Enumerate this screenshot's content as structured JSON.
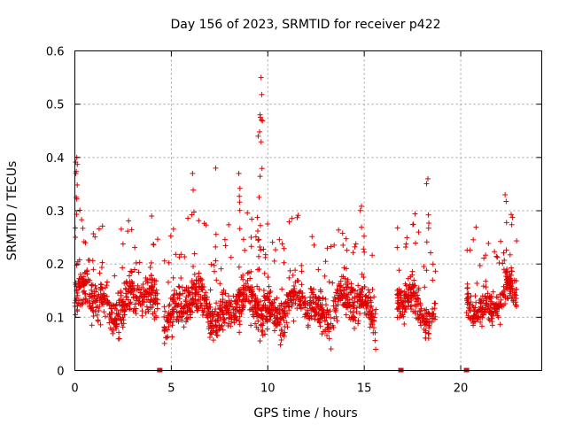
{
  "chart_data": {
    "type": "scatter",
    "title": "Day 156 of 2023, SRMTID for receiver p422",
    "xlabel": "GPS time / hours",
    "ylabel": "SRMTID / TECUs",
    "xlim": [
      0,
      24.2
    ],
    "ylim": [
      0,
      0.6
    ],
    "x_ticks": [
      0,
      5,
      10,
      15,
      20
    ],
    "x_tick_labels": [
      "0",
      "5",
      "10",
      "15",
      "20"
    ],
    "y_ticks": [
      0,
      0.1,
      0.2,
      0.3,
      0.4,
      0.5,
      0.6
    ],
    "y_tick_labels": [
      "0",
      "0.1",
      "0.2",
      "0.3",
      "0.4",
      "0.5",
      "0.6"
    ],
    "grid": true,
    "marker": "+",
    "color": "#e00000",
    "data_gap_markers_hours": [
      4.4,
      16.9,
      20.3
    ],
    "segments": [
      {
        "start": 0.0,
        "end": 4.3,
        "base": 0.13,
        "spread": 0.05,
        "count": 420
      },
      {
        "start": 4.6,
        "end": 15.6,
        "base": 0.12,
        "spread": 0.05,
        "count": 1100
      },
      {
        "start": 16.7,
        "end": 18.7,
        "base": 0.12,
        "spread": 0.04,
        "count": 200
      },
      {
        "start": 20.3,
        "end": 22.9,
        "base": 0.13,
        "spread": 0.04,
        "count": 260
      }
    ],
    "peaks": [
      {
        "x": 0.1,
        "y": 0.4
      },
      {
        "x": 0.05,
        "y": 0.37
      },
      {
        "x": 6.1,
        "y": 0.37
      },
      {
        "x": 7.3,
        "y": 0.38
      },
      {
        "x": 8.5,
        "y": 0.37
      },
      {
        "x": 9.5,
        "y": 0.44
      },
      {
        "x": 9.6,
        "y": 0.48
      },
      {
        "x": 9.65,
        "y": 0.55
      },
      {
        "x": 18.3,
        "y": 0.36
      },
      {
        "x": 22.3,
        "y": 0.33
      }
    ]
  }
}
